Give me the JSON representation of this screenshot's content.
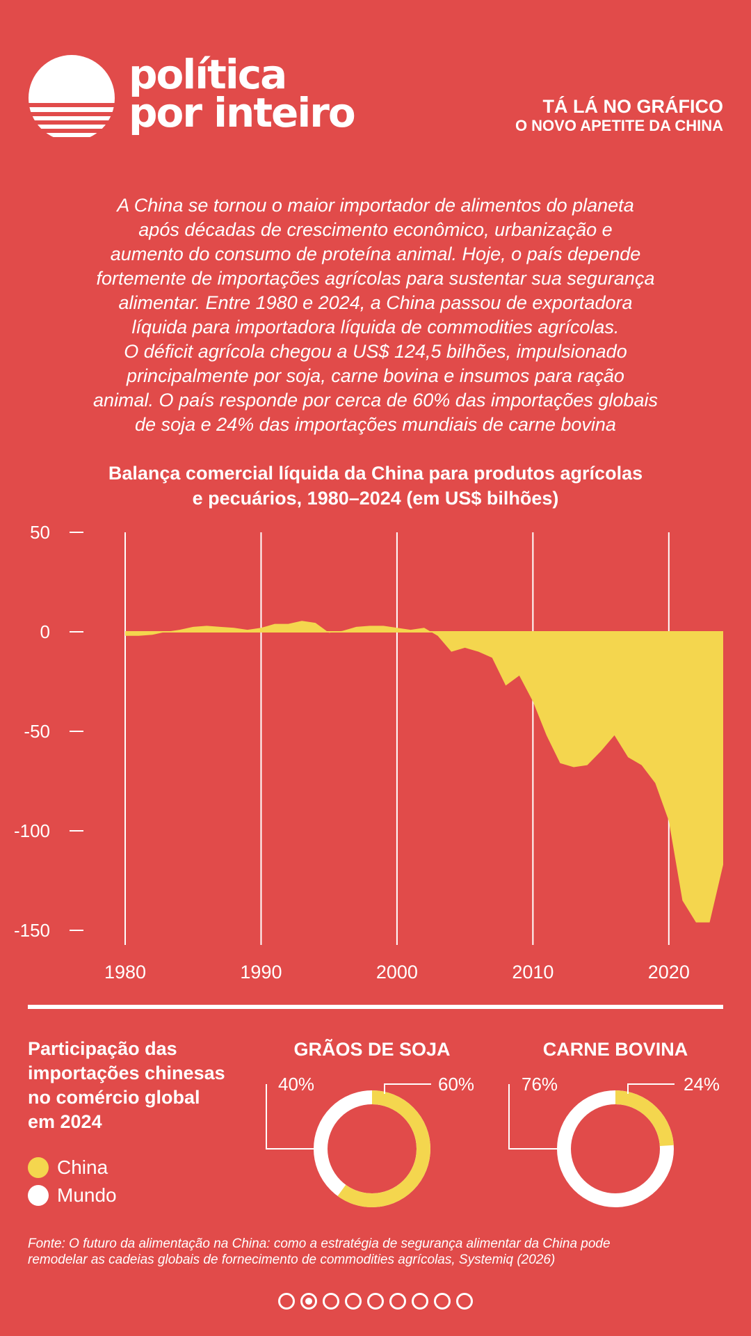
{
  "brand": {
    "line1": "política",
    "line2": "por inteiro",
    "logo_icon": "sunset-logo-icon"
  },
  "kicker": {
    "line1": "TÁ LÁ NO GRÁFICO",
    "line2": "O NOVO APETITE DA CHINA"
  },
  "intro": [
    "A China se tornou o maior importador de alimentos do planeta",
    "após décadas de crescimento econômico, urbanização e",
    "aumento do consumo de proteína animal. Hoje, o país depende",
    "fortemente de importações agrícolas para sustentar sua segurança",
    "alimentar. Entre 1980 e 2024, a China passou de exportadora",
    "líquida para importadora líquida de commodities agrícolas.",
    "O déficit agrícola chegou a US$ 124,5 bilhões, impulsionado",
    "principalmente por soja, carne bovina e insumos para ração",
    "animal. O país responde por cerca de 60% das importações globais",
    "de soja e 24% das importações mundiais de carne bovina"
  ],
  "colors": {
    "background": "#E14B4A",
    "accent": "#F4D64E",
    "white": "#FFFFFF"
  },
  "chart_data": [
    {
      "type": "area",
      "title_line1": "Balança comercial líquida da China para produtos agrícolas",
      "title_line2": "e pecuários, 1980–2024 (em US$ bilhões)",
      "ylim": [
        -150,
        50
      ],
      "xlim": [
        1980,
        2024
      ],
      "y_ticks": [
        50,
        0,
        -50,
        -100,
        -150
      ],
      "y_tick_labels": [
        "50",
        "0",
        "-50",
        "-100",
        "-150"
      ],
      "x_ticks": [
        1980,
        1990,
        2000,
        2010,
        2020
      ],
      "x_tick_labels": [
        "1980",
        "1990",
        "2000",
        "2010",
        "2020"
      ],
      "grid": "vertical",
      "x": [
        1980,
        1981,
        1982,
        1983,
        1984,
        1985,
        1986,
        1987,
        1988,
        1989,
        1990,
        1991,
        1992,
        1993,
        1994,
        1995,
        1996,
        1997,
        1998,
        1999,
        2000,
        2001,
        2002,
        2003,
        2004,
        2005,
        2006,
        2007,
        2008,
        2009,
        2010,
        2011,
        2012,
        2013,
        2014,
        2015,
        2016,
        2017,
        2018,
        2019,
        2020,
        2021,
        2022,
        2023,
        2024
      ],
      "values": [
        -2,
        -2,
        -1.5,
        0,
        1,
        2.5,
        3,
        2.5,
        2,
        1,
        2,
        4,
        4,
        5.5,
        4.5,
        -0.5,
        0.5,
        2.5,
        3,
        3,
        2,
        1,
        2,
        -2,
        -10,
        -8,
        -10,
        -13,
        -27,
        -22,
        -35,
        -52,
        -66,
        -68,
        -67,
        -60,
        -52,
        -63,
        -67,
        -76,
        -95,
        -135,
        -146,
        -146,
        -117
      ]
    },
    {
      "type": "pie",
      "title": "GRÃOS DE SOJA",
      "labels": [
        "China",
        "Mundo"
      ],
      "values": [
        60,
        40
      ],
      "value_labels": [
        "60%",
        "40%"
      ]
    },
    {
      "type": "pie",
      "title": "CARNE BOVINA",
      "labels": [
        "China",
        "Mundo"
      ],
      "values": [
        24,
        76
      ],
      "value_labels": [
        "24%",
        "76%"
      ]
    }
  ],
  "share": {
    "title": [
      "Participação das",
      "importações chinesas",
      "no comércio global",
      "em 2024"
    ]
  },
  "legend": [
    {
      "label": "China",
      "color": "#F4D64E"
    },
    {
      "label": "Mundo",
      "color": "#FFFFFF"
    }
  ],
  "source": [
    "Fonte: O futuro da alimentação na China: como a estratégia de segurança alimentar da China pode",
    "remodelar as cadeias globais de fornecimento de commodities agrícolas, Systemiq (2026)"
  ],
  "pagination": {
    "total": 9,
    "current": 2
  }
}
